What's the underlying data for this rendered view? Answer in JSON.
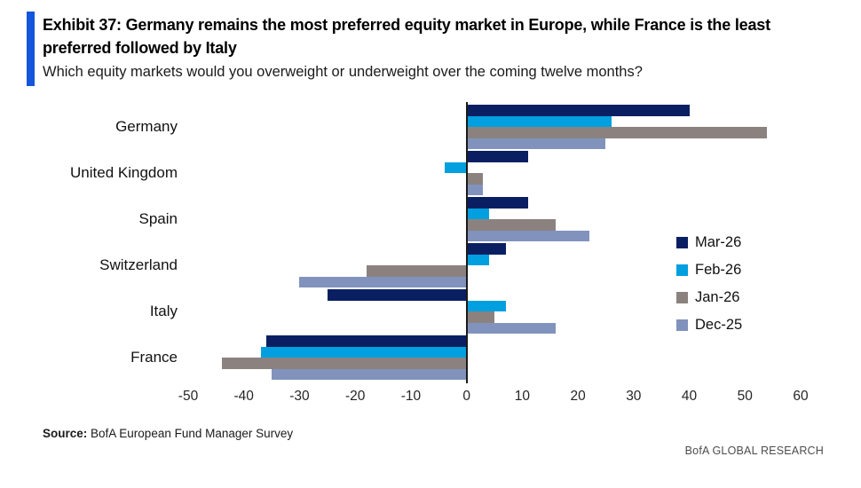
{
  "header": {
    "title": "Exhibit 37: Germany remains the most preferred equity market in Europe, while France is the least preferred followed by Italy",
    "subtitle": "Which equity markets would you overweight or underweight over the coming twelve months?"
  },
  "footer": {
    "source_label": "Source:",
    "source_text": " BofA European Fund Manager Survey",
    "brand": "BofA GLOBAL RESEARCH"
  },
  "colors": {
    "accent": "#1356DB",
    "axis_line": "#1a1a1a",
    "navy": "#0A1F62",
    "cyan": "#009FDF",
    "gray": "#8B8280",
    "slate": "#8193BD"
  },
  "chart_data": {
    "type": "bar",
    "orientation": "horizontal",
    "title": "Exhibit 37: Germany remains the most preferred equity market in Europe, while France is the least preferred followed by Italy",
    "subtitle": "Which equity markets would you overweight or underweight over the coming twelve months?",
    "categories": [
      "Germany",
      "United Kingdom",
      "Spain",
      "Switzerland",
      "Italy",
      "France"
    ],
    "series": [
      {
        "name": "Mar-26",
        "color": "#0A1F62",
        "values": [
          40,
          11,
          11,
          7,
          -25,
          -36
        ]
      },
      {
        "name": "Feb-26",
        "color": "#009FDF",
        "values": [
          26,
          -4,
          4,
          4,
          7,
          -37
        ]
      },
      {
        "name": "Jan-26",
        "color": "#8B8280",
        "values": [
          54,
          3,
          16,
          -18,
          5,
          -44
        ]
      },
      {
        "name": "Dec-25",
        "color": "#8193BD",
        "values": [
          25,
          3,
          22,
          -30,
          16,
          -35
        ]
      }
    ],
    "xlim": [
      -50,
      60
    ],
    "x_ticks": [
      -50,
      -40,
      -30,
      -20,
      -10,
      0,
      10,
      20,
      30,
      40,
      50,
      60
    ],
    "grid": false,
    "legend_position": "right-middle"
  }
}
